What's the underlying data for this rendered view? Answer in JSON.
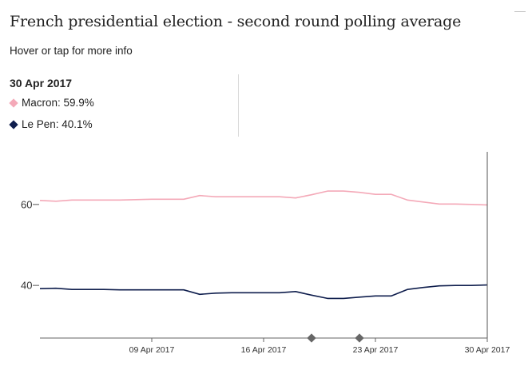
{
  "header": {
    "title": "French presidential election - second round polling average",
    "subtitle": "Hover or tap for more info"
  },
  "hover": {
    "date": "30 Apr 2017",
    "rows": [
      {
        "label": "Macron: 59.9%",
        "color": "#f4a9b8"
      },
      {
        "label": "Le Pen: 40.1%",
        "color": "#0f1e4d"
      }
    ]
  },
  "chart_data": {
    "type": "line",
    "title": "French presidential election - second round polling average",
    "xlabel": "",
    "ylabel": "",
    "x": [
      "02 Apr 2017",
      "03 Apr 2017",
      "04 Apr 2017",
      "05 Apr 2017",
      "06 Apr 2017",
      "07 Apr 2017",
      "08 Apr 2017",
      "09 Apr 2017",
      "10 Apr 2017",
      "11 Apr 2017",
      "12 Apr 2017",
      "13 Apr 2017",
      "14 Apr 2017",
      "15 Apr 2017",
      "16 Apr 2017",
      "17 Apr 2017",
      "18 Apr 2017",
      "19 Apr 2017",
      "20 Apr 2017",
      "21 Apr 2017",
      "22 Apr 2017",
      "23 Apr 2017",
      "24 Apr 2017",
      "25 Apr 2017",
      "26 Apr 2017",
      "27 Apr 2017",
      "28 Apr 2017",
      "29 Apr 2017",
      "30 Apr 2017"
    ],
    "series": [
      {
        "name": "Macron",
        "color": "#f4a9b8",
        "values": [
          61.0,
          60.8,
          61.1,
          61.1,
          61.1,
          61.1,
          61.2,
          61.3,
          61.3,
          61.3,
          62.2,
          61.9,
          61.9,
          61.9,
          61.9,
          61.9,
          61.6,
          62.4,
          63.3,
          63.3,
          63.0,
          62.5,
          62.5,
          61.1,
          60.6,
          60.1,
          60.1,
          60.0,
          59.9
        ]
      },
      {
        "name": "Le Pen",
        "color": "#0f1e4d",
        "values": [
          39.2,
          39.3,
          39.0,
          39.0,
          39.0,
          38.9,
          38.9,
          38.9,
          38.9,
          38.9,
          37.8,
          38.1,
          38.2,
          38.2,
          38.2,
          38.2,
          38.5,
          37.6,
          36.8,
          36.8,
          37.1,
          37.4,
          37.4,
          39.0,
          39.5,
          39.9,
          40.0,
          40.0,
          40.1
        ]
      }
    ],
    "yticks": [
      40,
      60
    ],
    "ylim": [
      27,
      73
    ],
    "xticks": [
      "09 Apr 2017",
      "16 Apr 2017",
      "23 Apr 2017",
      "30 Apr 2017"
    ],
    "event_markers": [
      "19 Apr 2017",
      "22 Apr 2017"
    ],
    "cursor": "30 Apr 2017",
    "grid": false
  }
}
